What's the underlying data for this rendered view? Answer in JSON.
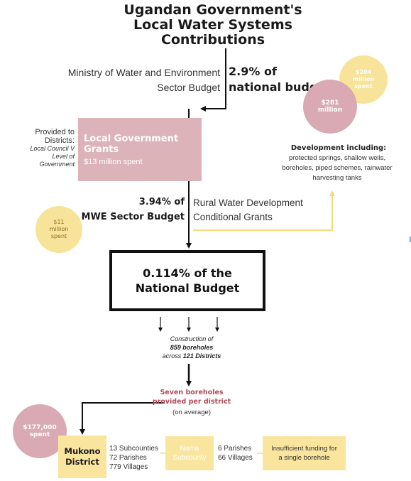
{
  "title": {
    "line1": "Ugandan Government's",
    "line2": "Local Water Systems",
    "line3": "Contributions"
  },
  "ministry": {
    "line1": "Ministry of Water and Environment",
    "line2": "Sector Budget",
    "pct_line1": "2.9% of",
    "pct_line2": "national budget"
  },
  "circles": {
    "c204_amount": "$204",
    "c204_unit1": "million",
    "c204_unit2": "spent",
    "c281_amount": "$281",
    "c281_unit": "million",
    "c11_amount": "$11",
    "c11_unit1": "million",
    "c11_unit2": "spent",
    "c177_amount": "$177,000",
    "c177_unit": "spent"
  },
  "local_government": {
    "provided_line1": "Provided to",
    "provided_line2": "Districts:",
    "provided_italic1": "Local Council V",
    "provided_italic2": "Level of",
    "provided_italic3": "Government",
    "title_line1": "Local Government",
    "title_line2": "Grants",
    "spent": "$13 million spent"
  },
  "development": {
    "title": "Development including:",
    "line1": "protected springs, shallow wells,",
    "line2": "boreholes, piped schemes, rainwater",
    "line3": "harvesting tanks"
  },
  "rural": {
    "pct_line1": "3.94% of",
    "pct_line2": "MWE Sector Budget",
    "line1": "Rural Water Development",
    "line2": "Conditional Grants"
  },
  "national": {
    "line1": "0.114% of the",
    "line2": "National Budget"
  },
  "construction": {
    "line1": "Construction of",
    "line2": "859 boreholes",
    "line3_pre": "across ",
    "line3_bold": "121 Districts"
  },
  "seven": {
    "line1": "Seven boreholes",
    "line2": "provided per district",
    "avg": "(on average)"
  },
  "mukono": {
    "line1": "Mukono",
    "line2": "District",
    "sub1": "13 Subcounties",
    "sub2": "72 Parishes",
    "sub3": "779 Villages"
  },
  "nama": {
    "line1": "Nama",
    "line2": "Subcounty",
    "sub1": "6 Parishes",
    "sub2": "66 Villages"
  },
  "insufficient": {
    "line1": "Insufficient funding for",
    "line2": "a single borehole"
  },
  "colors": {
    "pink": "#d9aab3",
    "yellow": "#f7e39a",
    "red_text": "#b24b58",
    "dark": "#111111"
  }
}
